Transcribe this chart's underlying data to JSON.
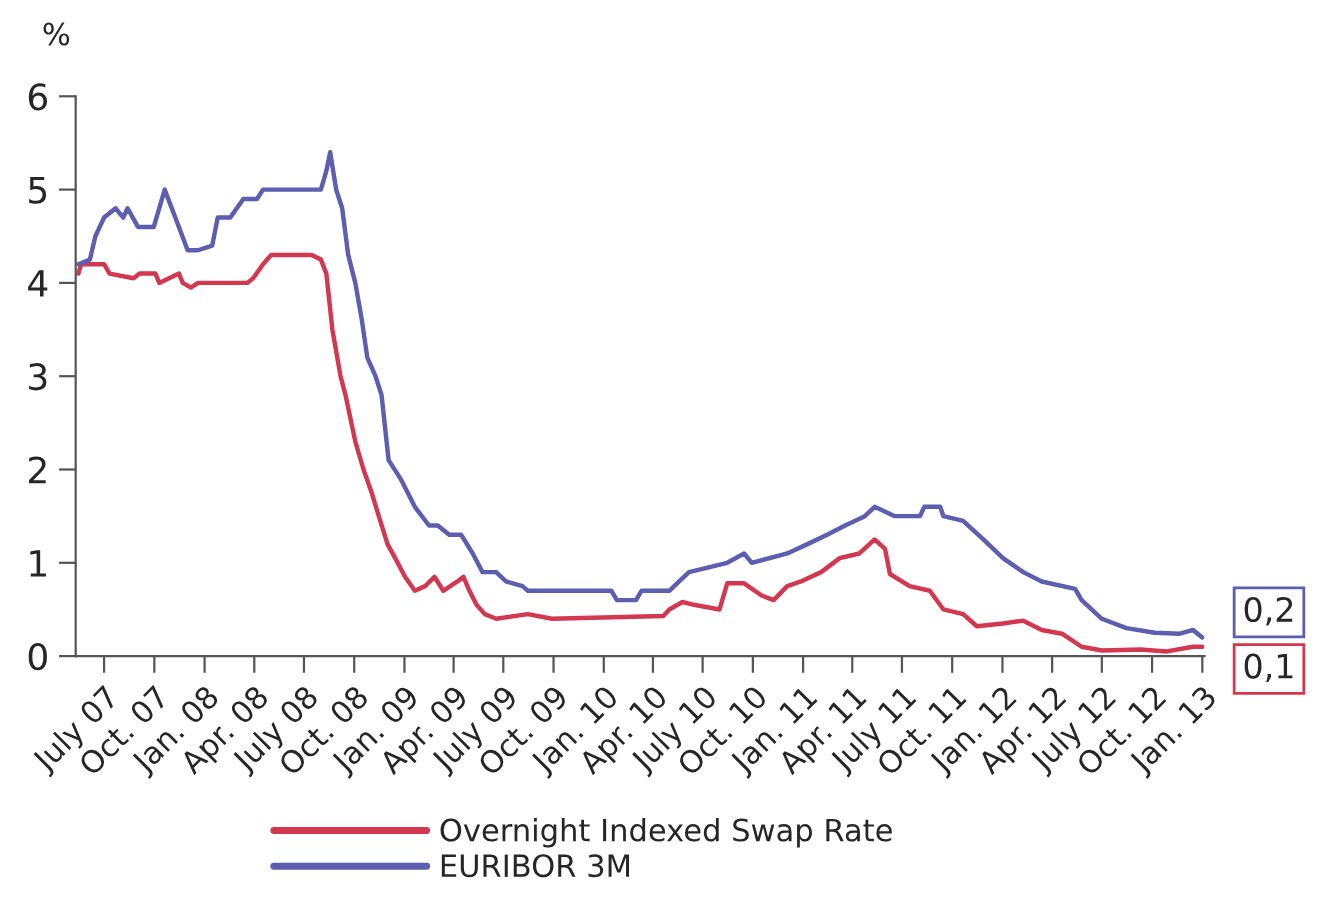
{
  "chart_data": {
    "type": "line",
    "ylabel": "%",
    "xlim": [
      "2007-05-10",
      "2013-01-05"
    ],
    "ylim": [
      0,
      6
    ],
    "yticks": [
      0,
      1,
      2,
      3,
      4,
      5,
      6
    ],
    "xticks": [
      {
        "value": "2007-07-01",
        "label": "July 07"
      },
      {
        "value": "2007-10-01",
        "label": "Oct. 07"
      },
      {
        "value": "2008-01-01",
        "label": "Jan. 08"
      },
      {
        "value": "2008-04-01",
        "label": "Apr. 08"
      },
      {
        "value": "2008-07-01",
        "label": "July 08"
      },
      {
        "value": "2008-10-01",
        "label": "Oct. 08"
      },
      {
        "value": "2009-01-01",
        "label": "Jan. 09"
      },
      {
        "value": "2009-04-01",
        "label": "Apr. 09"
      },
      {
        "value": "2009-07-01",
        "label": "July 09"
      },
      {
        "value": "2009-10-01",
        "label": "Oct. 09"
      },
      {
        "value": "2010-01-01",
        "label": "Jan. 10"
      },
      {
        "value": "2010-04-01",
        "label": "Apr. 10"
      },
      {
        "value": "2010-07-01",
        "label": "July 10"
      },
      {
        "value": "2010-10-01",
        "label": "Oct. 10"
      },
      {
        "value": "2011-01-01",
        "label": "Jan. 11"
      },
      {
        "value": "2011-04-01",
        "label": "Apr. 11"
      },
      {
        "value": "2011-07-01",
        "label": "July 11"
      },
      {
        "value": "2011-10-01",
        "label": "Oct. 11"
      },
      {
        "value": "2012-01-01",
        "label": "Jan. 12"
      },
      {
        "value": "2012-04-01",
        "label": "Apr. 12"
      },
      {
        "value": "2012-07-01",
        "label": "July 12"
      },
      {
        "value": "2012-10-01",
        "label": "Oct. 12"
      },
      {
        "value": "2013-01-01",
        "label": "Jan. 13"
      }
    ],
    "grid": false,
    "legend": "bottom",
    "marker": "none",
    "line_style": "solid",
    "annotations": [
      {
        "text": "0,1",
        "x": "2013-01-01",
        "y": 0.1
      },
      {
        "text": "0,2",
        "x": "2013-01-01",
        "y": 0.2
      }
    ],
    "series": [
      {
        "name": "Overnight Indexed Swap Rate",
        "color": "#d2384f",
        "x": [
          "2007-05-15",
          "2007-05-20",
          "2007-07-01",
          "2007-07-11",
          "2007-08-24",
          "2007-09-04",
          "2007-10-03",
          "2007-10-10",
          "2007-11-15",
          "2007-11-22",
          "2007-12-07",
          "2007-12-20",
          "2008-03-19",
          "2008-03-30",
          "2008-04-17",
          "2008-05-02",
          "2008-07-15",
          "2008-08-01",
          "2008-08-11",
          "2008-08-22",
          "2008-09-06",
          "2008-09-15",
          "2008-10-03",
          "2008-10-18",
          "2008-11-02",
          "2008-11-15",
          "2008-12-01",
          "2008-12-15",
          "2009-01-02",
          "2009-01-20",
          "2009-02-08",
          "2009-02-25",
          "2009-03-13",
          "2009-04-08",
          "2009-04-19",
          "2009-04-30",
          "2009-05-13",
          "2009-05-28",
          "2009-06-18",
          "2009-08-15",
          "2009-09-28",
          "2010-04-20",
          "2010-05-01",
          "2010-05-25",
          "2010-06-15",
          "2010-08-01",
          "2010-08-15",
          "2010-09-15",
          "2010-10-17",
          "2010-11-08",
          "2010-12-03",
          "2010-12-28",
          "2011-02-03",
          "2011-03-09",
          "2011-04-14",
          "2011-05-12",
          "2011-05-31",
          "2011-06-09",
          "2011-07-15",
          "2011-08-21",
          "2011-09-15",
          "2011-10-21",
          "2011-11-15",
          "2012-01-02",
          "2012-02-08",
          "2012-03-13",
          "2012-04-19",
          "2012-05-25",
          "2012-07-01",
          "2012-09-10",
          "2012-10-28",
          "2012-12-15",
          "2013-01-01"
        ],
        "values": [
          4.1,
          4.2,
          4.2,
          4.1,
          4.05,
          4.1,
          4.1,
          4.0,
          4.1,
          4.0,
          3.95,
          4.0,
          4.0,
          4.05,
          4.2,
          4.3,
          4.3,
          4.25,
          4.1,
          3.5,
          3.0,
          2.8,
          2.3,
          2.0,
          1.75,
          1.5,
          1.2,
          1.05,
          0.85,
          0.7,
          0.75,
          0.85,
          0.7,
          0.8,
          0.85,
          0.7,
          0.55,
          0.45,
          0.4,
          0.45,
          0.4,
          0.43,
          0.5,
          0.58,
          0.55,
          0.5,
          0.78,
          0.78,
          0.65,
          0.6,
          0.75,
          0.8,
          0.9,
          1.05,
          1.1,
          1.25,
          1.15,
          0.88,
          0.75,
          0.7,
          0.5,
          0.45,
          0.32,
          0.35,
          0.38,
          0.28,
          0.24,
          0.1,
          0.06,
          0.07,
          0.05,
          0.1,
          0.1
        ]
      },
      {
        "name": "EURIBOR 3M",
        "color": "#5c5fb0",
        "x": [
          "2007-05-15",
          "2007-06-05",
          "2007-06-15",
          "2007-07-01",
          "2007-07-22",
          "2007-08-05",
          "2007-08-13",
          "2007-09-01",
          "2007-09-30",
          "2007-10-20",
          "2007-11-15",
          "2007-12-01",
          "2007-12-20",
          "2008-01-15",
          "2008-01-25",
          "2008-02-17",
          "2008-03-12",
          "2008-04-06",
          "2008-04-17",
          "2008-08-01",
          "2008-08-11",
          "2008-08-18",
          "2008-08-29",
          "2008-09-09",
          "2008-09-20",
          "2008-10-03",
          "2008-10-15",
          "2008-10-25",
          "2008-11-09",
          "2008-11-20",
          "2008-12-03",
          "2008-12-25",
          "2009-01-20",
          "2009-02-15",
          "2009-03-03",
          "2009-03-24",
          "2009-04-15",
          "2009-05-06",
          "2009-05-24",
          "2009-06-18",
          "2009-07-06",
          "2009-08-05",
          "2009-08-15",
          "2010-01-15",
          "2010-01-25",
          "2010-03-01",
          "2010-03-11",
          "2010-05-01",
          "2010-05-19",
          "2010-06-06",
          "2010-08-15",
          "2010-09-15",
          "2010-09-29",
          "2010-12-03",
          "2011-01-09",
          "2011-02-14",
          "2011-03-19",
          "2011-04-24",
          "2011-05-12",
          "2011-06-18",
          "2011-08-03",
          "2011-08-11",
          "2011-09-09",
          "2011-09-15",
          "2011-10-21",
          "2011-11-27",
          "2012-01-02",
          "2012-02-08",
          "2012-03-13",
          "2012-05-13",
          "2012-05-25",
          "2012-07-01",
          "2012-08-15",
          "2012-10-06",
          "2012-11-21",
          "2012-12-15",
          "2013-01-01"
        ],
        "values": [
          4.2,
          4.25,
          4.5,
          4.7,
          4.8,
          4.7,
          4.8,
          4.6,
          4.6,
          5.0,
          4.6,
          4.35,
          4.35,
          4.4,
          4.7,
          4.7,
          4.9,
          4.9,
          5.0,
          5.0,
          5.2,
          5.4,
          5.0,
          4.8,
          4.3,
          4.0,
          3.6,
          3.2,
          3.0,
          2.8,
          2.1,
          1.9,
          1.6,
          1.4,
          1.4,
          1.3,
          1.3,
          1.1,
          0.9,
          0.9,
          0.8,
          0.75,
          0.7,
          0.7,
          0.6,
          0.6,
          0.7,
          0.7,
          0.8,
          0.9,
          1.0,
          1.1,
          1.0,
          1.1,
          1.2,
          1.3,
          1.4,
          1.5,
          1.6,
          1.5,
          1.5,
          1.6,
          1.6,
          1.5,
          1.45,
          1.25,
          1.05,
          0.9,
          0.8,
          0.72,
          0.6,
          0.4,
          0.3,
          0.25,
          0.24,
          0.28,
          0.2
        ]
      }
    ]
  }
}
